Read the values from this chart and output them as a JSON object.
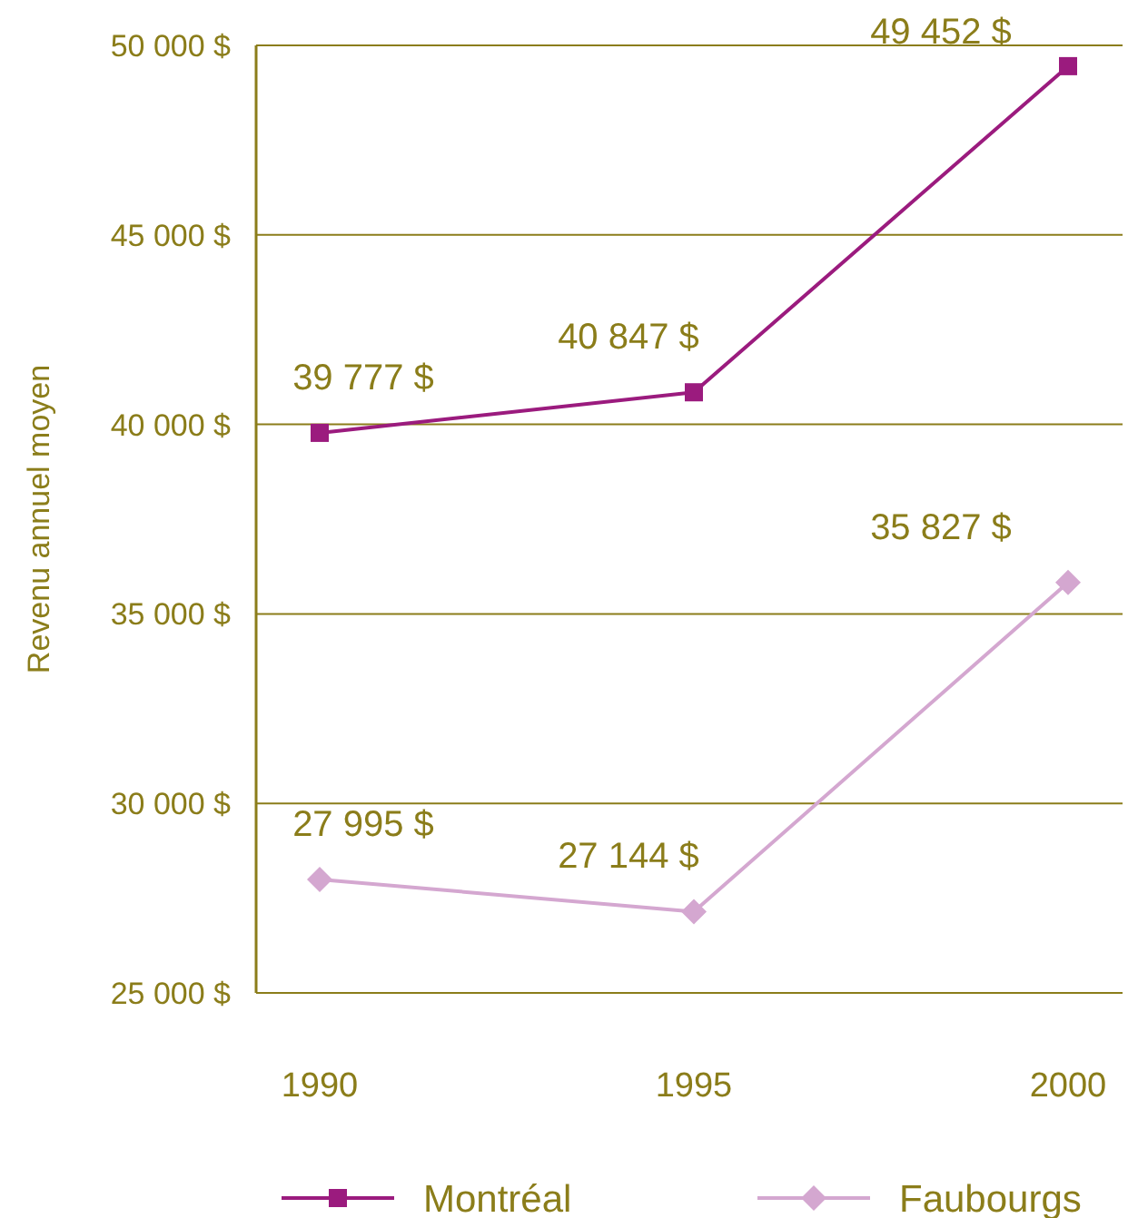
{
  "chart_data": {
    "type": "line",
    "ylabel": "Revenu annuel moyen",
    "categories": [
      "1990",
      "1995",
      "2000"
    ],
    "series": [
      {
        "name": "Montréal",
        "color": "#9b1b7e",
        "marker": "square",
        "values": [
          39777,
          40847,
          49452
        ],
        "value_labels": [
          "39 777 $",
          "40 847 $",
          "49 452 $"
        ]
      },
      {
        "name": "Faubourgs",
        "color": "#d4a7d0",
        "marker": "diamond",
        "values": [
          27995,
          27144,
          35827
        ],
        "value_labels": [
          "27 995 $",
          "27 144 $",
          "35 827 $"
        ]
      }
    ],
    "ylim": [
      25000,
      50000
    ],
    "yticks": [
      {
        "value": 25000,
        "label": "25 000 $"
      },
      {
        "value": 30000,
        "label": "30 000 $"
      },
      {
        "value": 35000,
        "label": "35 000 $"
      },
      {
        "value": 40000,
        "label": "40 000 $"
      },
      {
        "value": 45000,
        "label": "45 000 $"
      },
      {
        "value": 50000,
        "label": "50 000 $"
      }
    ],
    "grid": "y",
    "legend": "bottom",
    "line_style": "solid"
  }
}
